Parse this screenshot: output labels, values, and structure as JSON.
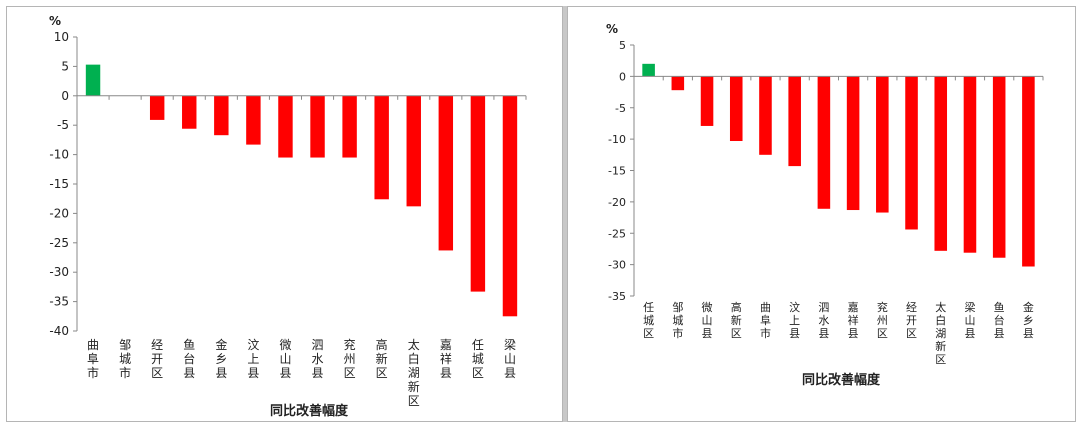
{
  "chart_data": [
    {
      "type": "bar",
      "unit": "%",
      "xlabel": "同比改善幅度",
      "ylim": [
        -40,
        10
      ],
      "yticks": [
        10,
        5,
        0,
        -5,
        -10,
        -15,
        -20,
        -25,
        -30,
        -35,
        -40
      ],
      "categories": [
        "曲阜市",
        "邹城市",
        "经开区",
        "鱼台县",
        "金乡县",
        "汶上县",
        "微山县",
        "泗水县",
        "兖州区",
        "高新区",
        "太白湖新区",
        "嘉祥县",
        "任城区",
        "梁山县"
      ],
      "values": [
        5.3,
        0,
        -4.1,
        -5.6,
        -6.7,
        -8.3,
        -10.5,
        -10.5,
        -10.5,
        -17.6,
        -18.8,
        -26.3,
        -33.3,
        -37.5
      ],
      "grid": false,
      "colors": {
        "positive": "#00b050",
        "negative": "#ff0000"
      }
    },
    {
      "type": "bar",
      "unit": "%",
      "xlabel": "同比改善幅度",
      "ylim": [
        -35,
        5
      ],
      "yticks": [
        5,
        0,
        -5,
        -10,
        -15,
        -20,
        -25,
        -30,
        -35
      ],
      "categories": [
        "任城区",
        "邹城市",
        "微山县",
        "高新区",
        "曲阜市",
        "汶上县",
        "泗水县",
        "嘉祥县",
        "兖州区",
        "经开区",
        "太白湖新区",
        "梁山县",
        "鱼台县",
        "金乡县"
      ],
      "values": [
        2.0,
        -2.2,
        -7.9,
        -10.3,
        -12.5,
        -14.3,
        -21.1,
        -21.3,
        -21.7,
        -24.4,
        -27.8,
        -28.1,
        -28.9,
        -30.3
      ],
      "grid": false,
      "colors": {
        "positive": "#00b050",
        "negative": "#ff0000"
      }
    }
  ]
}
